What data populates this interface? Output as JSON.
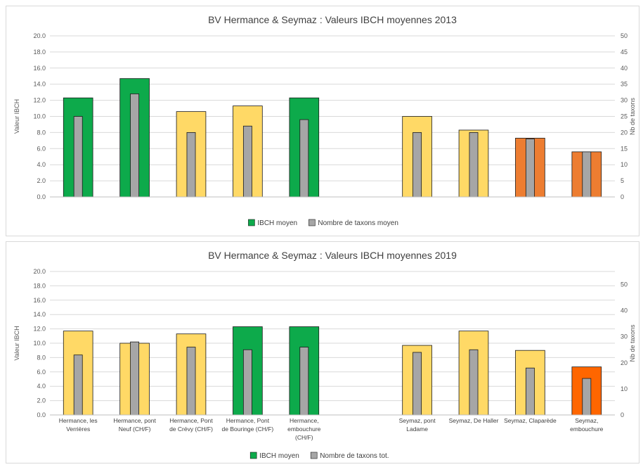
{
  "chart_data": [
    {
      "type": "bar",
      "title": "BV Hermance & Seymaz : Valeurs IBCH moyennes 2013",
      "ylabel": "Valeur IBCH",
      "y2label": "Nb de taxons",
      "ylim": [
        0,
        20
      ],
      "y2lim": [
        0,
        50
      ],
      "yticks": [
        "0.0",
        "2.0",
        "4.0",
        "6.0",
        "8.0",
        "10.0",
        "12.0",
        "14.0",
        "16.0",
        "18.0",
        "20.0"
      ],
      "y2ticks": [
        "0",
        "5",
        "10",
        "15",
        "20",
        "25",
        "30",
        "35",
        "40",
        "45",
        "50"
      ],
      "categories": [
        "",
        "",
        "",
        "",
        "",
        "",
        "",
        "",
        "",
        ""
      ],
      "series": [
        {
          "name": "IBCH moyen",
          "axis": "left",
          "values": [
            12.3,
            14.7,
            10.6,
            11.3,
            12.3,
            null,
            10.0,
            8.3,
            7.3,
            5.6
          ],
          "colors": [
            "#0DAA4B",
            "#0DAA4B",
            "#FFD966",
            "#FFD966",
            "#0DAA4B",
            null,
            "#FFD966",
            "#FFD966",
            "#ED7D31",
            "#ED7D31"
          ]
        },
        {
          "name": "Nombre de taxons moyen",
          "axis": "right",
          "values": [
            25,
            32,
            20,
            22,
            24,
            null,
            20,
            20,
            18,
            14
          ],
          "color": "#A6A6A6"
        }
      ],
      "legend": [
        {
          "label": "IBCH moyen",
          "color": "#0DAA4B"
        },
        {
          "label": "Nombre de taxons moyen",
          "color": "#A6A6A6"
        }
      ],
      "legend_position": "bottom",
      "grid": true
    },
    {
      "type": "bar",
      "title": "BV Hermance & Seymaz : Valeurs IBCH moyennes 2019",
      "ylabel": "Valeur IBCH",
      "y2label": "Nb de taxons",
      "ylim": [
        0,
        20
      ],
      "y2lim": [
        0,
        55
      ],
      "yticks": [
        "0.0",
        "2.0",
        "4.0",
        "6.0",
        "8.0",
        "10.0",
        "12.0",
        "14.0",
        "16.0",
        "18.0",
        "20.0"
      ],
      "y2ticks": [
        "0",
        "10",
        "20",
        "30",
        "40",
        "50"
      ],
      "categories": [
        [
          "Hermance, les",
          "Verrières"
        ],
        [
          "Hermance, pont",
          "Neuf (CH/F)"
        ],
        [
          "Hermance, Pont",
          "de Crévy (CH/F)"
        ],
        [
          "Hermance, Pont",
          "de Bouringe (CH/F)"
        ],
        [
          "Hermance,",
          "embouchure",
          "(CH/F)"
        ],
        [],
        [
          "Seymaz, pont",
          "Ladame"
        ],
        [
          "Seymaz, De Haller"
        ],
        [
          "Seymaz, Claparède"
        ],
        [
          "Seymaz,",
          "embouchure"
        ]
      ],
      "series": [
        {
          "name": "IBCH moyen",
          "axis": "left",
          "values": [
            11.7,
            10.0,
            11.3,
            12.3,
            12.3,
            null,
            9.7,
            11.7,
            9.0,
            6.7
          ],
          "colors": [
            "#FFD966",
            "#FFD966",
            "#FFD966",
            "#0DAA4B",
            "#0DAA4B",
            null,
            "#FFD966",
            "#FFD966",
            "#FFD966",
            "#FF6600"
          ]
        },
        {
          "name": "Nombre de taxons tot.",
          "axis": "right",
          "values": [
            23,
            28,
            26,
            25,
            26,
            null,
            24,
            25,
            18,
            14
          ],
          "color": "#A6A6A6"
        }
      ],
      "legend": [
        {
          "label": "IBCH moyen",
          "color": "#0DAA4B"
        },
        {
          "label": "Nombre de taxons tot.",
          "color": "#A6A6A6"
        }
      ],
      "legend_position": "bottom",
      "grid": true
    }
  ]
}
